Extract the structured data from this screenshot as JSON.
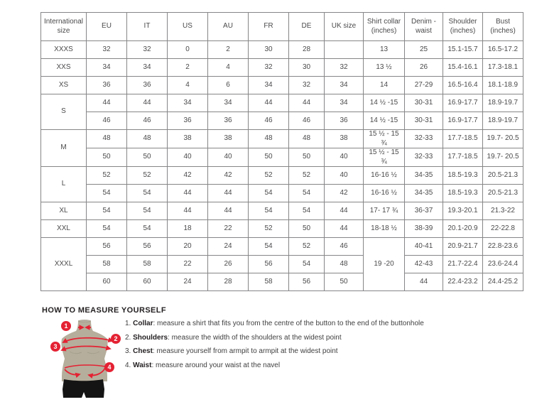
{
  "accent_color": "#e42233",
  "mannequin_color": "#b5ae9c",
  "border_color": "#868688",
  "table": {
    "headers": [
      "International size",
      "EU",
      "IT",
      "US",
      "AU",
      "FR",
      "DE",
      "UK size",
      "Shirt collar (inches)",
      "Denim - waist",
      "Shoulder (inches)",
      "Bust (inches)"
    ],
    "rows": [
      [
        {
          "t": "XXXS"
        },
        {
          "t": "32"
        },
        {
          "t": "32"
        },
        {
          "t": "0"
        },
        {
          "t": "2"
        },
        {
          "t": "30"
        },
        {
          "t": "28"
        },
        {
          "t": ""
        },
        {
          "t": "13"
        },
        {
          "t": "25"
        },
        {
          "t": "15.1-15.7"
        },
        {
          "t": "16.5-17.2"
        }
      ],
      [
        {
          "t": "XXS"
        },
        {
          "t": "34"
        },
        {
          "t": "34"
        },
        {
          "t": "2"
        },
        {
          "t": "4"
        },
        {
          "t": "32"
        },
        {
          "t": "30"
        },
        {
          "t": "32"
        },
        {
          "t": "13 ½"
        },
        {
          "t": "26"
        },
        {
          "t": "15.4-16.1"
        },
        {
          "t": "17.3-18.1"
        }
      ],
      [
        {
          "t": "XS"
        },
        {
          "t": "36"
        },
        {
          "t": "36"
        },
        {
          "t": "4"
        },
        {
          "t": "6"
        },
        {
          "t": "34"
        },
        {
          "t": "32"
        },
        {
          "t": "34"
        },
        {
          "t": "14"
        },
        {
          "t": "27-29"
        },
        {
          "t": "16.5-16.4"
        },
        {
          "t": "18.1-18.9"
        }
      ],
      [
        {
          "t": "S",
          "rs": 2
        },
        {
          "t": "44"
        },
        {
          "t": "44"
        },
        {
          "t": "34"
        },
        {
          "t": "34"
        },
        {
          "t": "44"
        },
        {
          "t": "44"
        },
        {
          "t": "34"
        },
        {
          "t": "14 ½ -15"
        },
        {
          "t": "30-31"
        },
        {
          "t": "16.9-17.7"
        },
        {
          "t": "18.9-19.7"
        }
      ],
      [
        {
          "t": "46"
        },
        {
          "t": "46"
        },
        {
          "t": "36"
        },
        {
          "t": "36"
        },
        {
          "t": "46"
        },
        {
          "t": "46"
        },
        {
          "t": "36"
        },
        {
          "t": "14 ½ -15"
        },
        {
          "t": "30-31"
        },
        {
          "t": "16.9-17.7"
        },
        {
          "t": "18.9-19.7"
        }
      ],
      [
        {
          "t": "M",
          "rs": 2
        },
        {
          "t": "48"
        },
        {
          "t": "48"
        },
        {
          "t": "38"
        },
        {
          "t": "38"
        },
        {
          "t": "48"
        },
        {
          "t": "48"
        },
        {
          "t": "38"
        },
        {
          "t": "15 ½ - 15 ¾"
        },
        {
          "t": "32-33"
        },
        {
          "t": "17.7-18.5"
        },
        {
          "t": "19.7- 20.5"
        }
      ],
      [
        {
          "t": "50"
        },
        {
          "t": "50"
        },
        {
          "t": "40"
        },
        {
          "t": "40"
        },
        {
          "t": "50"
        },
        {
          "t": "50"
        },
        {
          "t": "40"
        },
        {
          "t": "15 ½ - 15 ¾"
        },
        {
          "t": "32-33"
        },
        {
          "t": "17.7-18.5"
        },
        {
          "t": "19.7- 20.5"
        }
      ],
      [
        {
          "t": "L",
          "rs": 2
        },
        {
          "t": "52"
        },
        {
          "t": "52"
        },
        {
          "t": "42"
        },
        {
          "t": "42"
        },
        {
          "t": "52"
        },
        {
          "t": "52"
        },
        {
          "t": "40"
        },
        {
          "t": "16-16 ½"
        },
        {
          "t": "34-35"
        },
        {
          "t": "18.5-19.3"
        },
        {
          "t": "20.5-21.3"
        }
      ],
      [
        {
          "t": "54"
        },
        {
          "t": "54"
        },
        {
          "t": "44"
        },
        {
          "t": "44"
        },
        {
          "t": "54"
        },
        {
          "t": "54"
        },
        {
          "t": "42"
        },
        {
          "t": "16-16 ½"
        },
        {
          "t": "34-35"
        },
        {
          "t": "18.5-19.3"
        },
        {
          "t": "20.5-21.3"
        }
      ],
      [
        {
          "t": "XL"
        },
        {
          "t": "54"
        },
        {
          "t": "54"
        },
        {
          "t": "44"
        },
        {
          "t": "44"
        },
        {
          "t": "54"
        },
        {
          "t": "54"
        },
        {
          "t": "44"
        },
        {
          "t": "17- 17 ¾"
        },
        {
          "t": "36-37"
        },
        {
          "t": "19.3-20.1"
        },
        {
          "t": "21.3-22"
        }
      ],
      [
        {
          "t": "XXL"
        },
        {
          "t": "54"
        },
        {
          "t": "54"
        },
        {
          "t": "18"
        },
        {
          "t": "22"
        },
        {
          "t": "52"
        },
        {
          "t": "50"
        },
        {
          "t": "44"
        },
        {
          "t": "18-18 ½"
        },
        {
          "t": "38-39"
        },
        {
          "t": "20.1-20.9"
        },
        {
          "t": "22-22.8"
        }
      ],
      [
        {
          "t": "XXXL",
          "rs": 3
        },
        {
          "t": "56"
        },
        {
          "t": "56"
        },
        {
          "t": "20"
        },
        {
          "t": "24"
        },
        {
          "t": "54"
        },
        {
          "t": "52"
        },
        {
          "t": "46"
        },
        {
          "t": "19 -20",
          "rs": 3
        },
        {
          "t": "40-41"
        },
        {
          "t": "20.9-21.7"
        },
        {
          "t": "22.8-23.6"
        }
      ],
      [
        {
          "t": "58"
        },
        {
          "t": "58"
        },
        {
          "t": "22"
        },
        {
          "t": "26"
        },
        {
          "t": "56"
        },
        {
          "t": "54"
        },
        {
          "t": "48"
        },
        {
          "t": "42-43"
        },
        {
          "t": "21.7-22.4"
        },
        {
          "t": "23.6-24.4"
        }
      ],
      [
        {
          "t": "60"
        },
        {
          "t": "60"
        },
        {
          "t": "24"
        },
        {
          "t": "28"
        },
        {
          "t": "58"
        },
        {
          "t": "56"
        },
        {
          "t": "50"
        },
        {
          "t": "44"
        },
        {
          "t": "22.4-23.2"
        },
        {
          "t": "24.4-25.2"
        }
      ]
    ]
  },
  "measure": {
    "title": "HOW TO MEASURE YOURSELF",
    "badges": [
      "1",
      "2",
      "3",
      "4"
    ],
    "items": [
      {
        "num": "1.",
        "label": "Collar",
        "desc": ": measure a shirt that fits you from the centre of the button to the end of the buttonhole"
      },
      {
        "num": "2.",
        "label": "Shoulders",
        "desc": ": measure the width of the shoulders at the widest point"
      },
      {
        "num": "3.",
        "label": "Chest",
        "desc": ": measure yourself from armpit to armpit at the widest point"
      },
      {
        "num": "4.",
        "label": "Waist",
        "desc": ": measure around your waist at the navel"
      }
    ]
  }
}
